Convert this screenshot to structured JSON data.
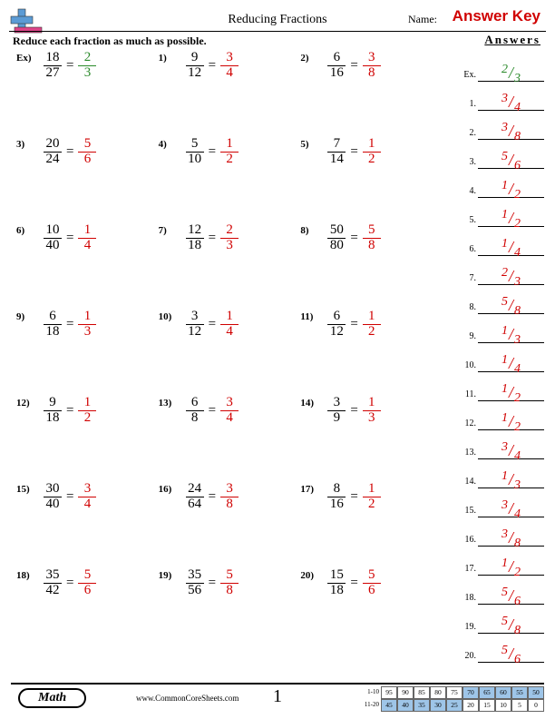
{
  "header": {
    "title": "Reducing Fractions",
    "name_label": "Name:",
    "answer_key": "Answer Key"
  },
  "instruction": "Reduce each fraction as much as possible.",
  "problems": [
    {
      "label": "Ex)",
      "p_num": "18",
      "p_den": "27",
      "a_num": "2",
      "a_den": "3",
      "style": "green"
    },
    {
      "label": "1)",
      "p_num": "9",
      "p_den": "12",
      "a_num": "3",
      "a_den": "4",
      "style": "red"
    },
    {
      "label": "2)",
      "p_num": "6",
      "p_den": "16",
      "a_num": "3",
      "a_den": "8",
      "style": "red"
    },
    {
      "label": "3)",
      "p_num": "20",
      "p_den": "24",
      "a_num": "5",
      "a_den": "6",
      "style": "red"
    },
    {
      "label": "4)",
      "p_num": "5",
      "p_den": "10",
      "a_num": "1",
      "a_den": "2",
      "style": "red"
    },
    {
      "label": "5)",
      "p_num": "7",
      "p_den": "14",
      "a_num": "1",
      "a_den": "2",
      "style": "red"
    },
    {
      "label": "6)",
      "p_num": "10",
      "p_den": "40",
      "a_num": "1",
      "a_den": "4",
      "style": "red"
    },
    {
      "label": "7)",
      "p_num": "12",
      "p_den": "18",
      "a_num": "2",
      "a_den": "3",
      "style": "red"
    },
    {
      "label": "8)",
      "p_num": "50",
      "p_den": "80",
      "a_num": "5",
      "a_den": "8",
      "style": "red"
    },
    {
      "label": "9)",
      "p_num": "6",
      "p_den": "18",
      "a_num": "1",
      "a_den": "3",
      "style": "red"
    },
    {
      "label": "10)",
      "p_num": "3",
      "p_den": "12",
      "a_num": "1",
      "a_den": "4",
      "style": "red"
    },
    {
      "label": "11)",
      "p_num": "6",
      "p_den": "12",
      "a_num": "1",
      "a_den": "2",
      "style": "red"
    },
    {
      "label": "12)",
      "p_num": "9",
      "p_den": "18",
      "a_num": "1",
      "a_den": "2",
      "style": "red"
    },
    {
      "label": "13)",
      "p_num": "6",
      "p_den": "8",
      "a_num": "3",
      "a_den": "4",
      "style": "red"
    },
    {
      "label": "14)",
      "p_num": "3",
      "p_den": "9",
      "a_num": "1",
      "a_den": "3",
      "style": "red"
    },
    {
      "label": "15)",
      "p_num": "30",
      "p_den": "40",
      "a_num": "3",
      "a_den": "4",
      "style": "red"
    },
    {
      "label": "16)",
      "p_num": "24",
      "p_den": "64",
      "a_num": "3",
      "a_den": "8",
      "style": "red"
    },
    {
      "label": "17)",
      "p_num": "8",
      "p_den": "16",
      "a_num": "1",
      "a_den": "2",
      "style": "red"
    },
    {
      "label": "18)",
      "p_num": "35",
      "p_den": "42",
      "a_num": "5",
      "a_den": "6",
      "style": "red"
    },
    {
      "label": "19)",
      "p_num": "35",
      "p_den": "56",
      "a_num": "5",
      "a_den": "8",
      "style": "red"
    },
    {
      "label": "20)",
      "p_num": "15",
      "p_den": "18",
      "a_num": "5",
      "a_den": "6",
      "style": "red"
    }
  ],
  "answers_header": "Answers",
  "answers": [
    {
      "label": "Ex.",
      "num": "2",
      "den": "3",
      "style": "green"
    },
    {
      "label": "1.",
      "num": "3",
      "den": "4",
      "style": "red"
    },
    {
      "label": "2.",
      "num": "3",
      "den": "8",
      "style": "red"
    },
    {
      "label": "3.",
      "num": "5",
      "den": "6",
      "style": "red"
    },
    {
      "label": "4.",
      "num": "1",
      "den": "2",
      "style": "red"
    },
    {
      "label": "5.",
      "num": "1",
      "den": "2",
      "style": "red"
    },
    {
      "label": "6.",
      "num": "1",
      "den": "4",
      "style": "red"
    },
    {
      "label": "7.",
      "num": "2",
      "den": "3",
      "style": "red"
    },
    {
      "label": "8.",
      "num": "5",
      "den": "8",
      "style": "red"
    },
    {
      "label": "9.",
      "num": "1",
      "den": "3",
      "style": "red"
    },
    {
      "label": "10.",
      "num": "1",
      "den": "4",
      "style": "red"
    },
    {
      "label": "11.",
      "num": "1",
      "den": "2",
      "style": "red"
    },
    {
      "label": "12.",
      "num": "1",
      "den": "2",
      "style": "red"
    },
    {
      "label": "13.",
      "num": "3",
      "den": "4",
      "style": "red"
    },
    {
      "label": "14.",
      "num": "1",
      "den": "3",
      "style": "red"
    },
    {
      "label": "15.",
      "num": "3",
      "den": "4",
      "style": "red"
    },
    {
      "label": "16.",
      "num": "3",
      "den": "8",
      "style": "red"
    },
    {
      "label": "17.",
      "num": "1",
      "den": "2",
      "style": "red"
    },
    {
      "label": "18.",
      "num": "5",
      "den": "6",
      "style": "red"
    },
    {
      "label": "19.",
      "num": "5",
      "den": "8",
      "style": "red"
    },
    {
      "label": "20.",
      "num": "5",
      "den": "6",
      "style": "red"
    }
  ],
  "footer": {
    "math_label": "Math",
    "url": "www.CommonCoreSheets.com",
    "page_num": "1",
    "score_rows": [
      {
        "label": "1-10",
        "cells": [
          "95",
          "90",
          "85",
          "80",
          "75",
          "70",
          "65",
          "60",
          "55",
          "50"
        ],
        "shaded_from": 5
      },
      {
        "label": "11-20",
        "cells": [
          "45",
          "40",
          "35",
          "30",
          "25",
          "20",
          "15",
          "10",
          "5",
          "0"
        ],
        "shaded_from": 0,
        "shaded_to": 5
      }
    ]
  },
  "colors": {
    "red": "#d00000",
    "green": "#2a8a2a",
    "black": "#000000",
    "shade": "#9ec5e8"
  }
}
